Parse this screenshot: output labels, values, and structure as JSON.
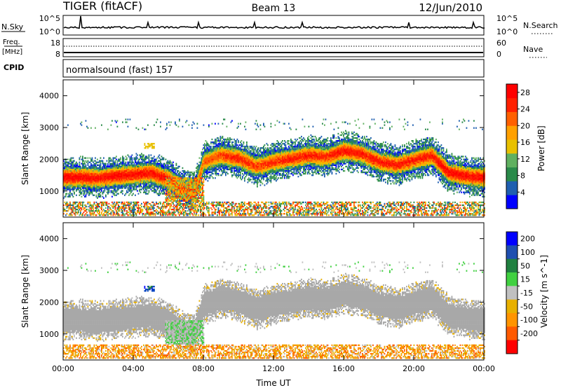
{
  "header": {
    "station": "TIGER (fitACF)",
    "beam": "Beam 13",
    "date": "12/Jun/2010"
  },
  "nsky_panel": {
    "left_label": "N.Sky",
    "left_ticks": [
      "10^5",
      "10^0"
    ],
    "right_label": "N.Search",
    "right_ticks": [
      "10^5",
      "10^0"
    ]
  },
  "freq_panel": {
    "left_label_line1": "Freq.",
    "left_label_line2": "[MHz]",
    "left_ticks": [
      "18",
      "8"
    ],
    "right_label": "Nave",
    "right_ticks": [
      "60",
      "0"
    ]
  },
  "cpid_panel": {
    "label": "CPID",
    "text": "normalsound (fast) 157"
  },
  "colors": {
    "power_scale": [
      "#0000ff",
      "#1f5fb0",
      "#2a8a4a",
      "#60b060",
      "#e8c000",
      "#ffa000",
      "#ff6000",
      "#ff2000",
      "#ff0000"
    ],
    "velocity_scale": [
      "#ff0000",
      "#ff5a00",
      "#ff9400",
      "#e8b000",
      "#c0c0c0",
      "#c0c0c0",
      "#40d040",
      "#208040",
      "#0040c0",
      "#0000ff"
    ],
    "ground_scatter": "#a8a8a8"
  },
  "chart_data": [
    {
      "type": "heatmap",
      "title": "",
      "xlabel": "",
      "ylabel": "Slant Range [km]",
      "xlim": [
        "00:00",
        "24:00"
      ],
      "ylim": [
        180,
        4500
      ],
      "x_ticks": [
        "00:00",
        "04:00",
        "08:00",
        "12:00",
        "16:00",
        "20:00",
        "00:00"
      ],
      "y_ticks": [
        1000,
        2000,
        3000,
        4000
      ],
      "colorbar": {
        "label": "Power [dB]",
        "ticks": [
          4,
          8,
          12,
          16,
          20,
          24,
          28
        ],
        "range": [
          0,
          30
        ]
      },
      "echo_band": {
        "hours": [
          0,
          1,
          2,
          3,
          4,
          5,
          6,
          7,
          7.5,
          8,
          9,
          10,
          11,
          12,
          13,
          14,
          15,
          16,
          17,
          18,
          19,
          20,
          21,
          22,
          23,
          24
        ],
        "center_km": [
          1400,
          1420,
          1380,
          1450,
          1500,
          1550,
          1350,
          1000,
          1000,
          1900,
          2100,
          2000,
          1750,
          1900,
          2000,
          2100,
          2050,
          2250,
          2150,
          1900,
          1800,
          1950,
          2100,
          1550,
          1450,
          1400
        ],
        "peak_power_db": [
          28,
          28,
          27,
          28,
          28,
          27,
          26,
          22,
          20,
          22,
          24,
          26,
          24,
          25,
          26,
          26,
          25,
          27,
          26,
          26,
          26,
          26,
          26,
          28,
          27,
          28
        ]
      }
    },
    {
      "type": "heatmap",
      "title": "",
      "xlabel": "Time UT",
      "ylabel": "Slant Range [km]",
      "xlim": [
        "00:00",
        "24:00"
      ],
      "ylim": [
        180,
        4500
      ],
      "x_ticks": [
        "00:00",
        "04:00",
        "08:00",
        "12:00",
        "16:00",
        "20:00",
        "00:00"
      ],
      "y_ticks": [
        1000,
        2000,
        3000,
        4000
      ],
      "colorbar": {
        "label": "Velocity [m s^-1]",
        "ticks": [
          200,
          100,
          50,
          15,
          -15,
          -50,
          -100,
          -200
        ],
        "range": [
          -250,
          250
        ]
      },
      "features": [
        {
          "label": "ground scatter",
          "hours": [
            0,
            24
          ],
          "velocity": 0
        },
        {
          "label": "positive velocity patch",
          "hours": [
            5.8,
            8.0
          ],
          "range_km": [
            650,
            1400
          ],
          "velocity": 50
        },
        {
          "label": "positive velocity patch",
          "hours": [
            4.5,
            5.2
          ],
          "range_km": [
            2300,
            2500
          ],
          "velocity": 150
        }
      ]
    }
  ]
}
